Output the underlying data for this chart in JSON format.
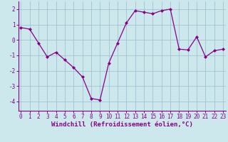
{
  "x": [
    0,
    1,
    2,
    3,
    4,
    5,
    6,
    7,
    8,
    9,
    10,
    11,
    12,
    13,
    14,
    15,
    16,
    17,
    18,
    19,
    20,
    21,
    22,
    23
  ],
  "y": [
    0.8,
    0.7,
    -0.2,
    -1.1,
    -0.8,
    -1.3,
    -1.8,
    -2.4,
    -3.8,
    -3.9,
    -1.5,
    -0.2,
    1.1,
    1.9,
    1.8,
    1.7,
    1.9,
    2.0,
    -0.6,
    -0.65,
    0.2,
    -1.1,
    -0.7,
    -0.6
  ],
  "line_color": "#880088",
  "marker": "D",
  "markersize": 2.0,
  "linewidth": 0.9,
  "bg_color": "#cce8ec",
  "plot_bg_color": "#cce8ec",
  "grid_color": "#99bbcc",
  "xlabel": "Windchill (Refroidissement éolien,°C)",
  "label_color": "#880088",
  "xlabel_fontsize": 6.5,
  "yticks": [
    -4,
    -3,
    -2,
    -1,
    0,
    1,
    2
  ],
  "xticks": [
    0,
    1,
    2,
    3,
    4,
    5,
    6,
    7,
    8,
    9,
    10,
    11,
    12,
    13,
    14,
    15,
    16,
    17,
    18,
    19,
    20,
    21,
    22,
    23
  ],
  "ylim": [
    -4.6,
    2.5
  ],
  "xlim": [
    -0.3,
    23.3
  ],
  "tick_fontsize": 5.5,
  "spine_color": "#880088",
  "tick_color": "#880088"
}
